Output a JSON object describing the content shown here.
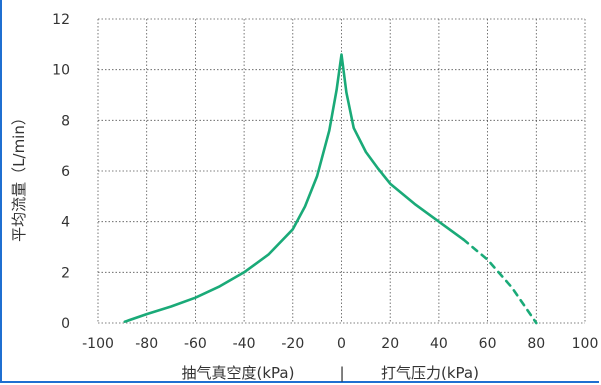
{
  "chart_data": {
    "type": "line",
    "ylabel": "平均流量（L/min）",
    "xlabel_left": "抽气真空度(kPa)",
    "xlabel_separator": "|",
    "xlabel_right": "打气压力(kPa)",
    "xlim": [
      -100,
      100
    ],
    "ylim": [
      0,
      12
    ],
    "x_ticks": [
      "-100",
      "-80",
      "-60",
      "-40",
      "-20",
      "0",
      "20",
      "40",
      "60",
      "80",
      "100"
    ],
    "y_ticks": [
      "0",
      "2",
      "4",
      "6",
      "8",
      "10",
      "12"
    ],
    "grid": true,
    "line_color": "#1aaa78",
    "series": [
      {
        "style": "solid",
        "x": [
          -89,
          -80,
          -70,
          -60,
          -50,
          -40,
          -30,
          -20,
          -15,
          -10,
          -5,
          -2,
          0,
          2,
          5,
          10,
          15,
          20,
          30,
          40,
          50
        ],
        "y": [
          0.05,
          0.35,
          0.65,
          1.0,
          1.45,
          2.0,
          2.7,
          3.7,
          4.6,
          5.8,
          7.6,
          9.2,
          10.6,
          9.1,
          7.7,
          6.75,
          6.1,
          5.5,
          4.7,
          4.0,
          3.3
        ]
      },
      {
        "style": "dashed",
        "x": [
          50,
          60,
          70,
          80
        ],
        "y": [
          3.3,
          2.5,
          1.4,
          0
        ]
      }
    ]
  }
}
